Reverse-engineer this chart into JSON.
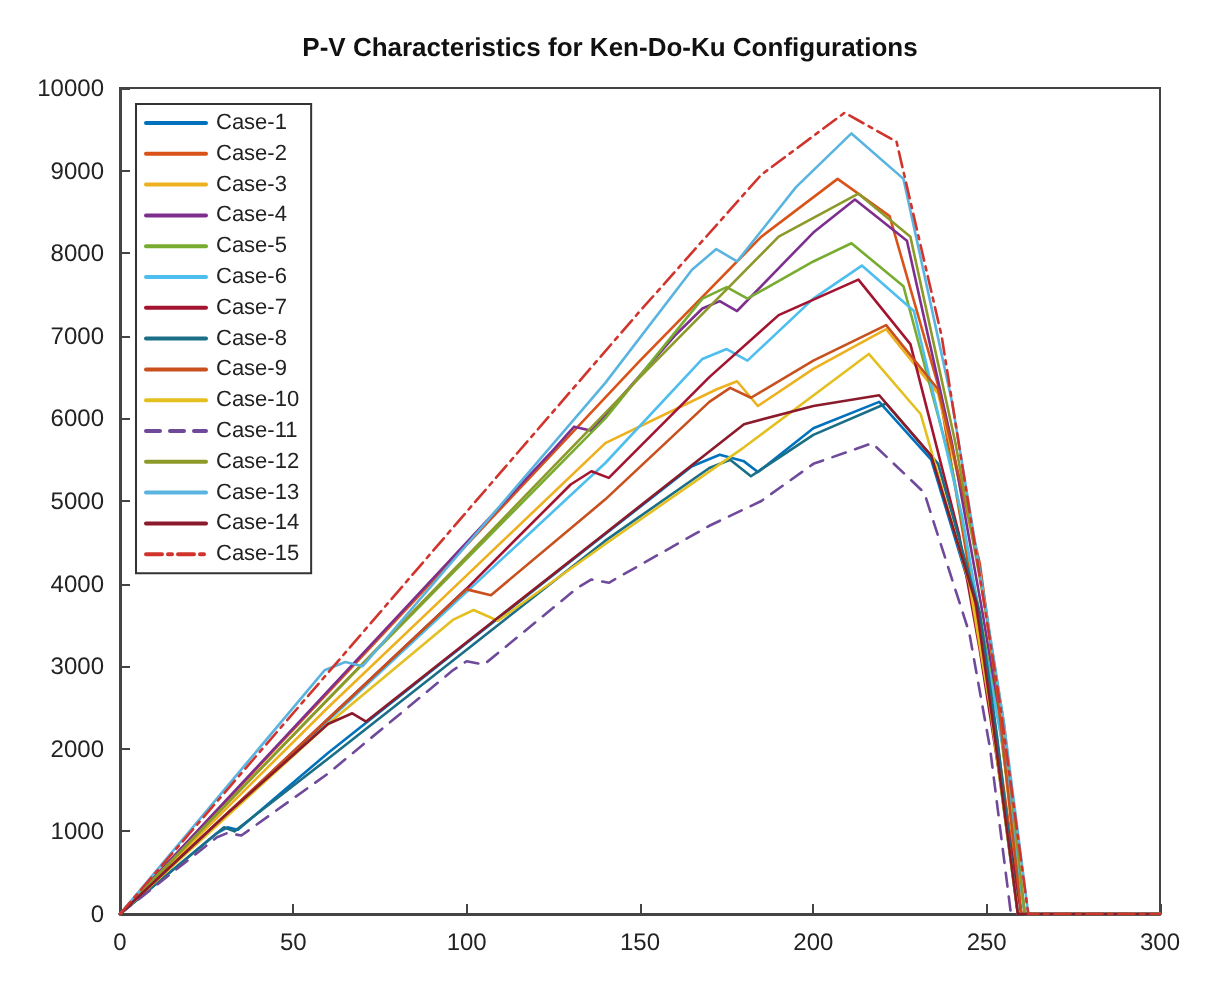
{
  "chart_data": {
    "type": "line",
    "title": "P-V Characteristics for Ken-Do-Ku Configurations",
    "xlim": [
      0,
      300
    ],
    "xticks": [
      0,
      50,
      100,
      150,
      200,
      250,
      300
    ],
    "ylim": [
      0,
      10000
    ],
    "yticks": [
      0,
      1000,
      2000,
      3000,
      4000,
      5000,
      6000,
      7000,
      8000,
      9000,
      10000
    ],
    "grid": false,
    "legend": "top left",
    "marker": "none",
    "line_style": "solid",
    "series": [
      {
        "name": "Case-1",
        "color": "#0072bd",
        "x": [
          0,
          28,
          31,
          34,
          60,
          100,
          140,
          165,
          173,
          180,
          184,
          200,
          219,
          234,
          247,
          252,
          259,
          300
        ],
        "values": [
          0,
          980,
          1050,
          1020,
          1950,
          3280,
          4600,
          5420,
          5560,
          5480,
          5350,
          5880,
          6200,
          5500,
          3700,
          2200,
          0,
          0
        ]
      },
      {
        "name": "Case-2",
        "color": "#d95319",
        "x": [
          0,
          30,
          60,
          100,
          150,
          185,
          207,
          222,
          236,
          246,
          252,
          260,
          300
        ],
        "values": [
          0,
          1340,
          2680,
          4470,
          6700,
          8200,
          8900,
          8450,
          6400,
          3900,
          2400,
          0,
          0
        ]
      },
      {
        "name": "Case-3",
        "color": "#edb120",
        "x": [
          0,
          30,
          60,
          100,
          140,
          172,
          178,
          184,
          200,
          221,
          236,
          248,
          253,
          260,
          300
        ],
        "values": [
          0,
          1250,
          2500,
          4100,
          5700,
          6350,
          6450,
          6150,
          6600,
          7080,
          6300,
          4200,
          2650,
          0,
          0
        ]
      },
      {
        "name": "Case-4",
        "color": "#7e2f8e",
        "x": [
          0,
          30,
          60,
          100,
          125,
          131,
          136,
          160,
          168,
          173,
          178,
          200,
          212,
          227,
          240,
          249,
          254,
          261,
          300
        ],
        "values": [
          0,
          1350,
          2700,
          4500,
          5620,
          5900,
          5850,
          7000,
          7330,
          7420,
          7300,
          8250,
          8650,
          8150,
          5700,
          3600,
          2300,
          0,
          0
        ]
      },
      {
        "name": "Case-5",
        "color": "#77ac30",
        "x": [
          0,
          30,
          60,
          100,
          140,
          168,
          175,
          181,
          200,
          211,
          226,
          240,
          249,
          254,
          261,
          300
        ],
        "values": [
          0,
          1300,
          2600,
          4300,
          6000,
          7450,
          7590,
          7450,
          7900,
          8120,
          7600,
          5400,
          3400,
          2200,
          0,
          0
        ]
      },
      {
        "name": "Case-6",
        "color": "#4dbeee",
        "x": [
          0,
          30,
          60,
          100,
          140,
          168,
          175,
          181,
          200,
          214,
          229,
          243,
          250,
          255,
          261,
          300
        ],
        "values": [
          0,
          1170,
          2340,
          3900,
          5460,
          6720,
          6840,
          6700,
          7450,
          7850,
          7300,
          4800,
          3100,
          1950,
          0,
          0
        ]
      },
      {
        "name": "Case-7",
        "color": "#a2142f",
        "x": [
          0,
          30,
          60,
          100,
          130,
          136,
          141,
          170,
          190,
          213,
          228,
          242,
          248,
          260,
          300
        ],
        "values": [
          0,
          1180,
          2360,
          3940,
          5200,
          5360,
          5280,
          6500,
          7250,
          7680,
          6900,
          4600,
          3200,
          0,
          0
        ]
      },
      {
        "name": "Case-8",
        "color": "#1a6e86",
        "x": [
          0,
          30,
          33,
          60,
          100,
          140,
          170,
          176,
          182,
          200,
          221,
          236,
          248,
          253,
          259,
          300
        ],
        "values": [
          0,
          1050,
          1000,
          1880,
          3200,
          4520,
          5400,
          5500,
          5300,
          5800,
          6180,
          5450,
          3650,
          2150,
          0,
          0
        ]
      },
      {
        "name": "Case-9",
        "color": "#c8501e",
        "x": [
          0,
          30,
          60,
          94,
          100,
          107,
          140,
          170,
          176,
          182,
          200,
          221,
          236,
          248,
          253,
          260,
          300
        ],
        "values": [
          0,
          1180,
          2360,
          3700,
          3930,
          3860,
          5020,
          6200,
          6370,
          6250,
          6700,
          7130,
          6350,
          4250,
          2700,
          0,
          0
        ]
      },
      {
        "name": "Case-10",
        "color": "#e3c020",
        "x": [
          0,
          30,
          60,
          96,
          102,
          109,
          140,
          180,
          216,
          231,
          245,
          251,
          259,
          300
        ],
        "values": [
          0,
          1150,
          2300,
          3560,
          3680,
          3550,
          4480,
          5650,
          6780,
          6050,
          4000,
          2500,
          0,
          0
        ]
      },
      {
        "name": "Case-11",
        "color": "#6f4a9a",
        "line_style": "dashed",
        "x": [
          0,
          28,
          31,
          35,
          60,
          96,
          100,
          105,
          132,
          136,
          141,
          170,
          185,
          200,
          217,
          232,
          245,
          251,
          257,
          300
        ],
        "values": [
          0,
          930,
          980,
          950,
          1700,
          2950,
          3060,
          3020,
          3950,
          4050,
          4010,
          4700,
          5000,
          5450,
          5700,
          5100,
          3400,
          2000,
          0,
          0
        ]
      },
      {
        "name": "Case-12",
        "color": "#8d9a2a",
        "x": [
          0,
          30,
          60,
          100,
          150,
          190,
          213,
          228,
          241,
          250,
          255,
          261,
          300
        ],
        "values": [
          0,
          1300,
          2600,
          4330,
          6500,
          8200,
          8720,
          8200,
          5700,
          3600,
          2300,
          0,
          0
        ]
      },
      {
        "name": "Case-13",
        "color": "#5ab4e0",
        "x": [
          0,
          30,
          59,
          65,
          70,
          100,
          140,
          165,
          172,
          178,
          195,
          211,
          226,
          240,
          249,
          255,
          262,
          300
        ],
        "values": [
          0,
          1500,
          2950,
          3050,
          3000,
          4470,
          6430,
          7800,
          8050,
          7900,
          8800,
          9450,
          8900,
          6200,
          3900,
          2300,
          0,
          0
        ]
      },
      {
        "name": "Case-14",
        "color": "#8b1a2a",
        "x": [
          0,
          30,
          60,
          67,
          71,
          100,
          140,
          180,
          200,
          219,
          234,
          247,
          252,
          259,
          300
        ],
        "values": [
          0,
          1180,
          2300,
          2430,
          2330,
          3290,
          4610,
          5930,
          6150,
          6280,
          5550,
          3750,
          2250,
          0,
          0
        ]
      },
      {
        "name": "Case-15",
        "color": "#d0342c",
        "line_style": "dashdot",
        "x": [
          0,
          30,
          60,
          100,
          150,
          185,
          209,
          224,
          237,
          248,
          254,
          262,
          300
        ],
        "values": [
          0,
          1460,
          2920,
          4870,
          7300,
          8950,
          9700,
          9350,
          7000,
          4100,
          2500,
          0,
          0
        ]
      }
    ]
  }
}
